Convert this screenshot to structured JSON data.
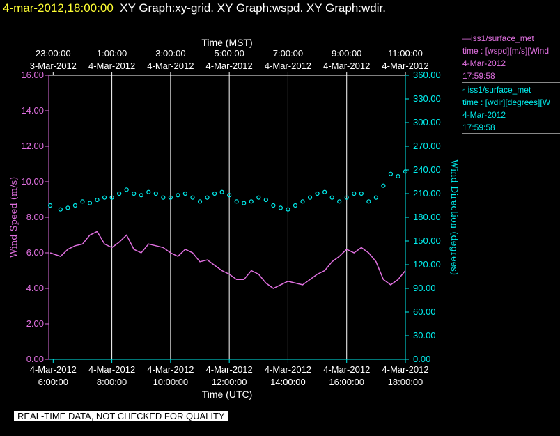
{
  "header": {
    "time": "4-mar-2012,18:00:00",
    "graphs": "XY Graph:xy-grid.  XY Graph:wspd.  XY Graph:wdir."
  },
  "legend": {
    "wspd": {
      "line1": "—iss1/surface_met",
      "line2": "time : [wspd][m/s][Wind",
      "line3": "4-Mar-2012",
      "line4": "17:59:58"
    },
    "wdir": {
      "line1": "◦ iss1/surface_met",
      "line2": "time : [wdir][degrees][W",
      "line3": "4-Mar-2012",
      "line4": "17:59:58"
    }
  },
  "footer": "REAL-TIME DATA, NOT CHECKED FOR QUALITY",
  "colors": {
    "wspd": "#e070e0",
    "wdir": "#00eeee",
    "grid": "#ffffff",
    "axis_top": "#ffffff",
    "background": "#000000"
  },
  "chart_data": {
    "type": "line",
    "x_bottom_label": "Time (UTC)",
    "x_top_label": "Time (MST)",
    "x_range_hours": [
      5.85,
      18.0
    ],
    "x_ticks_bottom": [
      {
        "h": 6,
        "date": "4-Mar-2012",
        "time": "6:00:00"
      },
      {
        "h": 8,
        "date": "4-Mar-2012",
        "time": "8:00:00"
      },
      {
        "h": 10,
        "date": "4-Mar-2012",
        "time": "10:00:00"
      },
      {
        "h": 12,
        "date": "4-Mar-2012",
        "time": "12:00:00"
      },
      {
        "h": 14,
        "date": "4-Mar-2012",
        "time": "14:00:00"
      },
      {
        "h": 16,
        "date": "4-Mar-2012",
        "time": "16:00:00"
      },
      {
        "h": 18,
        "date": "4-Mar-2012",
        "time": "18:00:00"
      }
    ],
    "x_ticks_top": [
      {
        "h": 6,
        "time": "23:00:00",
        "date": "3-Mar-2012"
      },
      {
        "h": 8,
        "time": "1:00:00",
        "date": "4-Mar-2012"
      },
      {
        "h": 10,
        "time": "3:00:00",
        "date": "4-Mar-2012"
      },
      {
        "h": 12,
        "time": "5:00:00",
        "date": "4-Mar-2012"
      },
      {
        "h": 14,
        "time": "7:00:00",
        "date": "4-Mar-2012"
      },
      {
        "h": 16,
        "time": "9:00:00",
        "date": "4-Mar-2012"
      },
      {
        "h": 18,
        "time": "11:00:00",
        "date": "4-Mar-2012"
      }
    ],
    "gridlines_hours": [
      8,
      10,
      12,
      14,
      16
    ],
    "y_left": {
      "label": "Wind Speed (m/s)",
      "range": [
        0,
        16
      ],
      "ticks": [
        "0.00",
        "2.00",
        "4.00",
        "6.00",
        "8.00",
        "10.00",
        "12.00",
        "14.00",
        "16.00"
      ]
    },
    "y_right": {
      "label": "Wind Direction (degrees)",
      "range": [
        0,
        360
      ],
      "ticks": [
        "0.00",
        "30.00",
        "60.00",
        "90.00",
        "120.00",
        "150.00",
        "180.00",
        "210.00",
        "240.00",
        "270.00",
        "300.00",
        "330.00",
        "360.00"
      ]
    },
    "series": [
      {
        "name": "iss1/surface_met wspd",
        "axis": "left",
        "style": "line",
        "x": [
          5.9,
          6.25,
          6.5,
          6.75,
          7.0,
          7.25,
          7.5,
          7.75,
          8.0,
          8.25,
          8.5,
          8.75,
          9.0,
          9.25,
          9.5,
          9.75,
          10.0,
          10.25,
          10.5,
          10.75,
          11.0,
          11.25,
          11.5,
          11.75,
          12.0,
          12.25,
          12.5,
          12.75,
          13.0,
          13.25,
          13.5,
          13.75,
          14.0,
          14.25,
          14.5,
          14.75,
          15.0,
          15.25,
          15.5,
          15.75,
          16.0,
          16.25,
          16.5,
          16.75,
          17.0,
          17.25,
          17.5,
          17.75,
          18.0
        ],
        "y": [
          6.0,
          5.8,
          6.2,
          6.4,
          6.5,
          7.0,
          7.2,
          6.5,
          6.3,
          6.6,
          7.0,
          6.2,
          6.0,
          6.5,
          6.4,
          6.3,
          6.0,
          5.8,
          6.2,
          6.0,
          5.5,
          5.6,
          5.3,
          5.0,
          4.8,
          4.5,
          4.5,
          5.0,
          4.8,
          4.3,
          4.0,
          4.2,
          4.4,
          4.3,
          4.2,
          4.5,
          4.8,
          5.0,
          5.5,
          5.8,
          6.2,
          6.0,
          6.3,
          6.0,
          5.5,
          4.5,
          4.2,
          4.5,
          5.0
        ]
      },
      {
        "name": "iss1/surface_met wdir",
        "axis": "right",
        "style": "markers",
        "x": [
          5.9,
          6.25,
          6.5,
          6.75,
          7.0,
          7.25,
          7.5,
          7.75,
          8.0,
          8.25,
          8.5,
          8.75,
          9.0,
          9.25,
          9.5,
          9.75,
          10.0,
          10.25,
          10.5,
          10.75,
          11.0,
          11.25,
          11.5,
          11.75,
          12.0,
          12.25,
          12.5,
          12.75,
          13.0,
          13.25,
          13.5,
          13.75,
          14.0,
          14.25,
          14.5,
          14.75,
          15.0,
          15.25,
          15.5,
          15.75,
          16.0,
          16.25,
          16.5,
          16.75,
          17.0,
          17.25,
          17.5,
          17.75,
          18.0
        ],
        "y": [
          195,
          190,
          192,
          195,
          200,
          198,
          202,
          205,
          205,
          210,
          215,
          210,
          208,
          212,
          210,
          205,
          205,
          208,
          210,
          205,
          200,
          205,
          210,
          212,
          208,
          200,
          198,
          200,
          205,
          202,
          195,
          192,
          190,
          195,
          200,
          205,
          210,
          212,
          205,
          200,
          205,
          210,
          210,
          200,
          205,
          220,
          235,
          232,
          238
        ]
      }
    ]
  }
}
